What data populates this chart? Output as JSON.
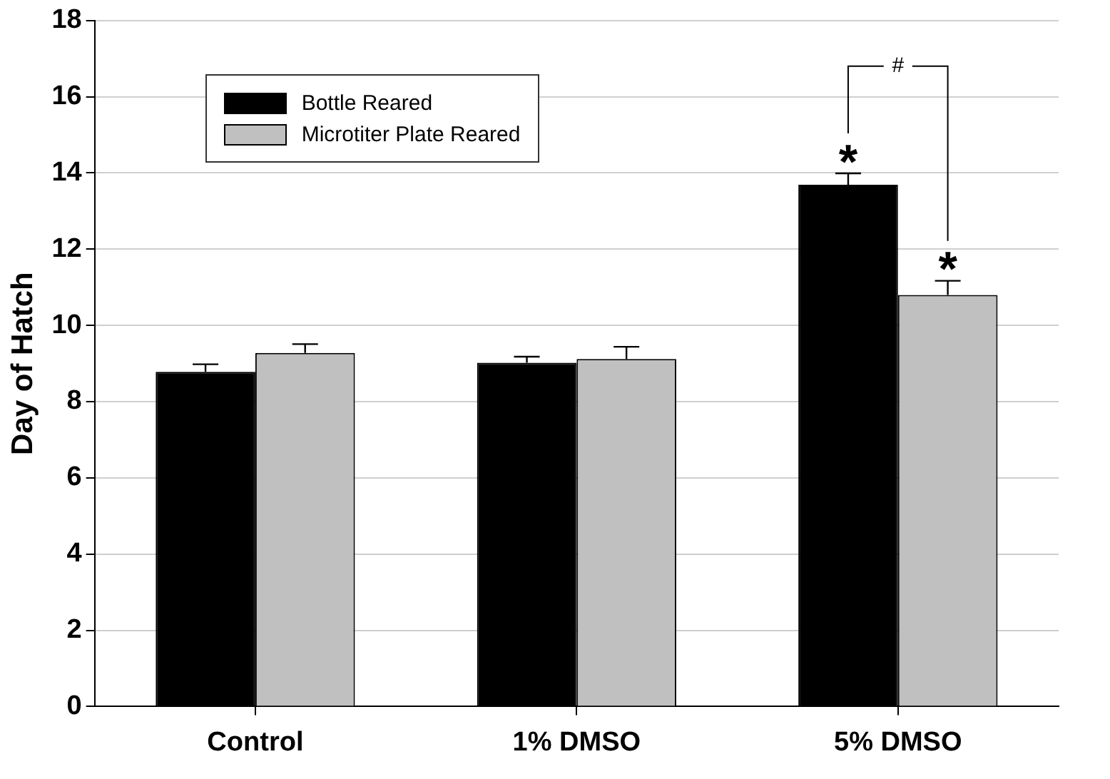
{
  "chart_data": {
    "type": "bar",
    "ylabel": "Day of Hatch",
    "categories": [
      "Control",
      "1% DMSO",
      "5% DMSO"
    ],
    "series": [
      {
        "name": "Bottle Reared",
        "color": "#000000",
        "values": [
          8.78,
          9.02,
          13.69
        ],
        "errors": [
          0.2,
          0.16,
          0.3
        ]
      },
      {
        "name": "Microtiter Plate Reared",
        "color": "#c0c0c0",
        "values": [
          9.28,
          9.12,
          10.8
        ],
        "errors": [
          0.23,
          0.32,
          0.37
        ]
      }
    ],
    "ylim": [
      0,
      18
    ],
    "yticks": [
      0,
      2,
      4,
      6,
      8,
      10,
      12,
      14,
      16,
      18
    ],
    "grid": "y",
    "legend": "top left",
    "annotations": [
      "*",
      "*",
      "#"
    ]
  }
}
